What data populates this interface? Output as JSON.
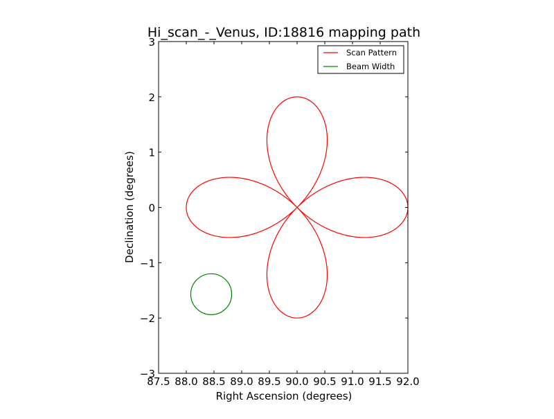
{
  "chart_data": {
    "type": "line",
    "title": "Hi_scan_-_Venus, ID:18816 mapping path",
    "xlabel": "Right Ascension (degrees)",
    "ylabel": "Declination (degrees)",
    "xlim": [
      87.5,
      92.0
    ],
    "ylim": [
      -3,
      3
    ],
    "xticks": [
      "87.5",
      "88.0",
      "88.5",
      "89.0",
      "89.5",
      "90.0",
      "90.5",
      "91.0",
      "91.5",
      "92.0"
    ],
    "yticks": [
      "−3",
      "−2",
      "−1",
      "0",
      "1",
      "2",
      "3"
    ],
    "grid": false,
    "legend_position": "top-right",
    "series": [
      {
        "name": "Scan Pattern",
        "color": "#ff0000",
        "center": [
          90.0,
          0.0
        ],
        "petal_length_deg": 2.0,
        "petals": 4,
        "description": "four-petal rose curve r = 2*cos(2θ)"
      },
      {
        "name": "Beam Width",
        "color": "#008000",
        "center": [
          88.45,
          -1.57
        ],
        "radius_deg": 0.37
      }
    ]
  }
}
